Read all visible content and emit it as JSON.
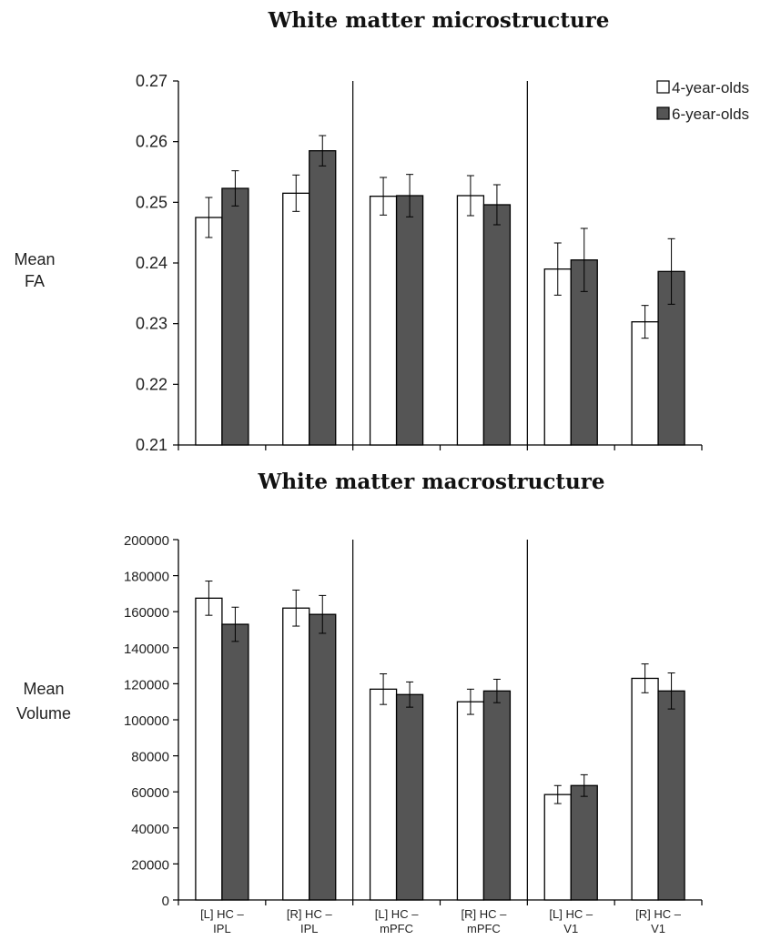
{
  "chart_data": [
    {
      "type": "bar",
      "title": "White matter microstructure",
      "ylabel": [
        "Mean",
        "FA"
      ],
      "ylim": [
        0.21,
        0.27
      ],
      "yticks": [
        "0.21",
        "0.22",
        "0.23",
        "0.24",
        "0.25",
        "0.26",
        "0.27"
      ],
      "categories": [
        "[L] HC – IPL",
        "[R] HC – IPL",
        "[L] HC – mPFC",
        "[R] HC – mPFC",
        "[L] HC – V1",
        "[R] HC – V1"
      ],
      "series": [
        {
          "name": "4-year-olds",
          "color": "#ffffff",
          "values": [
            0.2475,
            0.2515,
            0.251,
            0.2511,
            0.239,
            0.2303
          ],
          "errors": [
            0.0033,
            0.003,
            0.0031,
            0.0033,
            0.0043,
            0.0027
          ]
        },
        {
          "name": "6-year-olds",
          "color": "#555555",
          "values": [
            0.2523,
            0.2585,
            0.2511,
            0.2496,
            0.2405,
            0.2386
          ],
          "errors": [
            0.0029,
            0.0025,
            0.0035,
            0.0033,
            0.0052,
            0.0054
          ]
        }
      ],
      "legend": "top-right",
      "grid": false
    },
    {
      "type": "bar",
      "title": "White matter macrostructure",
      "ylabel": [
        "Mean",
        "Volume"
      ],
      "ylim": [
        0,
        200000
      ],
      "yticks": [
        "0",
        "20000",
        "40000",
        "60000",
        "80000",
        "100000",
        "120000",
        "140000",
        "160000",
        "180000",
        "200000"
      ],
      "categories": [
        "[L] HC – IPL",
        "[R] HC – IPL",
        "[L] HC – mPFC",
        "[R] HC – mPFC",
        "[L] HC – V1",
        "[R] HC – V1"
      ],
      "category_lines": [
        [
          "[L] HC –",
          "IPL"
        ],
        [
          "[R] HC –",
          "IPL"
        ],
        [
          "[L] HC –",
          "mPFC"
        ],
        [
          "[R] HC –",
          "mPFC"
        ],
        [
          "[L] HC –",
          "V1"
        ],
        [
          "[R] HC –",
          "V1"
        ]
      ],
      "series": [
        {
          "name": "4-year-olds",
          "color": "#ffffff",
          "values": [
            167500,
            162000,
            117000,
            110000,
            58500,
            123000
          ],
          "errors": [
            9500,
            10000,
            8500,
            7000,
            5000,
            8000
          ]
        },
        {
          "name": "6-year-olds",
          "color": "#555555",
          "values": [
            153000,
            158500,
            114000,
            116000,
            63500,
            116000
          ],
          "errors": [
            9500,
            10500,
            7000,
            6500,
            6000,
            10000
          ]
        }
      ],
      "grid": false
    }
  ]
}
